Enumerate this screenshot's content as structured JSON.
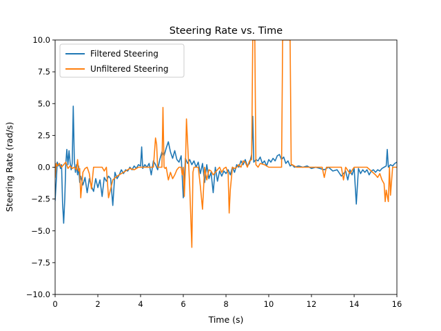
{
  "chart_data": {
    "type": "line",
    "title": "Steering Rate vs. Time",
    "xlabel": "Time (s)",
    "ylabel": "Steering Rate (rad/s)",
    "xlim": [
      0,
      16
    ],
    "ylim": [
      -10,
      10
    ],
    "xticks": [
      0,
      2,
      4,
      6,
      8,
      10,
      12,
      14,
      16
    ],
    "yticks": [
      -10.0,
      -7.5,
      -5.0,
      -2.5,
      0.0,
      2.5,
      5.0,
      7.5,
      10.0
    ],
    "xtick_labels": [
      "0",
      "2",
      "4",
      "6",
      "8",
      "10",
      "12",
      "14",
      "16"
    ],
    "ytick_labels": [
      "−10.0",
      "−7.5",
      "−5.0",
      "−2.5",
      "0.0",
      "2.5",
      "5.0",
      "7.5",
      "10.0"
    ],
    "grid": false,
    "legend_position": "top-left",
    "series": [
      {
        "name": "Filtered Steering",
        "color": "#1f77b4",
        "x": [
          0.0,
          0.05,
          0.1,
          0.15,
          0.2,
          0.25,
          0.3,
          0.35,
          0.4,
          0.45,
          0.5,
          0.55,
          0.6,
          0.65,
          0.7,
          0.75,
          0.8,
          0.85,
          0.9,
          0.95,
          1.0,
          1.05,
          1.1,
          1.15,
          1.2,
          1.3,
          1.4,
          1.5,
          1.6,
          1.7,
          1.8,
          1.9,
          2.0,
          2.1,
          2.2,
          2.3,
          2.4,
          2.5,
          2.6,
          2.7,
          2.8,
          2.9,
          3.0,
          3.1,
          3.2,
          3.3,
          3.4,
          3.5,
          3.6,
          3.7,
          3.8,
          3.9,
          4.0,
          4.05,
          4.1,
          4.2,
          4.3,
          4.4,
          4.5,
          4.6,
          4.7,
          4.8,
          4.9,
          5.0,
          5.1,
          5.2,
          5.3,
          5.4,
          5.5,
          5.6,
          5.7,
          5.8,
          5.9,
          6.0,
          6.1,
          6.2,
          6.3,
          6.4,
          6.5,
          6.6,
          6.7,
          6.8,
          6.9,
          7.0,
          7.1,
          7.2,
          7.3,
          7.4,
          7.5,
          7.6,
          7.7,
          7.8,
          7.9,
          8.0,
          8.1,
          8.2,
          8.3,
          8.4,
          8.5,
          8.6,
          8.7,
          8.8,
          8.9,
          9.0,
          9.1,
          9.2,
          9.25,
          9.3,
          9.4,
          9.5,
          9.6,
          9.7,
          9.8,
          9.9,
          10.0,
          10.1,
          10.2,
          10.3,
          10.4,
          10.5,
          10.6,
          10.7,
          10.8,
          10.9,
          11.0,
          11.1,
          11.2,
          11.4,
          11.6,
          11.8,
          12.0,
          12.2,
          12.4,
          12.6,
          12.8,
          13.0,
          13.2,
          13.4,
          13.6,
          13.7,
          13.8,
          13.9,
          14.0,
          14.1,
          14.2,
          14.3,
          14.4,
          14.5,
          14.6,
          14.7,
          14.8,
          14.9,
          15.0,
          15.1,
          15.2,
          15.3,
          15.4,
          15.5,
          15.55,
          15.6,
          15.7,
          15.8,
          15.9,
          16.0
        ],
        "y": [
          -2.6,
          -1.2,
          0.4,
          0.1,
          0.3,
          -0.1,
          0.2,
          -2.8,
          -4.4,
          -2.5,
          0.3,
          1.4,
          0.2,
          1.3,
          0.4,
          -0.2,
          0.3,
          4.8,
          0.5,
          -0.4,
          0.2,
          -0.6,
          0.1,
          -1.2,
          -0.7,
          -1.4,
          -0.8,
          -2.0,
          -0.9,
          -1.5,
          -1.9,
          -0.9,
          -1.6,
          -1.0,
          -2.3,
          -0.8,
          -1.1,
          -0.7,
          -0.9,
          -3.0,
          -0.4,
          -0.9,
          -0.6,
          -0.2,
          -0.5,
          -0.2,
          -0.3,
          0.0,
          -0.2,
          0.1,
          -0.1,
          0.2,
          0.1,
          1.6,
          -0.1,
          0.2,
          0.0,
          0.3,
          -0.6,
          0.5,
          0.2,
          -0.2,
          0.6,
          1.2,
          0.9,
          1.5,
          2.0,
          1.2,
          0.7,
          1.3,
          0.6,
          0.4,
          0.9,
          -2.4,
          0.7,
          0.3,
          0.6,
          0.2,
          0.5,
          0.0,
          0.4,
          -0.5,
          0.3,
          -1.2,
          0.2,
          -0.9,
          -0.4,
          -2.0,
          0.0,
          -1.1,
          -0.3,
          -0.7,
          -0.3,
          -0.5,
          -0.2,
          -0.6,
          0.0,
          -0.4,
          0.2,
          0.0,
          0.5,
          0.2,
          0.6,
          0.1,
          0.3,
          1.0,
          4.0,
          0.4,
          0.6,
          0.5,
          0.8,
          0.3,
          0.5,
          0.1,
          0.6,
          0.4,
          0.7,
          0.5,
          0.9,
          1.0,
          0.6,
          0.8,
          0.3,
          0.5,
          0.1,
          0.2,
          0.0,
          0.1,
          0.0,
          0.1,
          -0.1,
          0.0,
          -0.1,
          -0.2,
          0.0,
          -0.3,
          -0.2,
          -0.7,
          -0.3,
          -1.0,
          -0.2,
          -0.6,
          -0.1,
          -2.9,
          -0.1,
          -0.5,
          -0.2,
          -0.4,
          -0.2,
          -0.6,
          -0.3,
          -0.2,
          -0.4,
          -0.2,
          -0.3,
          -0.1,
          0.0,
          0.1,
          1.4,
          0.0,
          0.2,
          0.1,
          0.3,
          0.4
        ]
      },
      {
        "name": "Unfiltered Steering",
        "color": "#ff7f0e",
        "x": [
          0.0,
          0.05,
          0.1,
          0.2,
          0.3,
          0.4,
          0.5,
          0.6,
          0.7,
          0.8,
          0.9,
          1.0,
          1.05,
          1.1,
          1.15,
          1.2,
          1.3,
          1.4,
          1.5,
          1.6,
          1.7,
          1.8,
          1.9,
          2.0,
          2.1,
          2.2,
          2.3,
          2.4,
          2.5,
          2.7,
          2.9,
          3.1,
          3.3,
          3.5,
          3.7,
          3.9,
          4.1,
          4.3,
          4.5,
          4.6,
          4.7,
          4.75,
          4.8,
          4.9,
          5.0,
          5.05,
          5.1,
          5.15,
          5.2,
          5.3,
          5.4,
          5.5,
          5.6,
          5.7,
          5.8,
          5.9,
          5.95,
          6.0,
          6.05,
          6.1,
          6.15,
          6.2,
          6.3,
          6.4,
          6.45,
          6.5,
          6.6,
          6.7,
          6.8,
          6.9,
          7.0,
          7.1,
          7.2,
          7.3,
          7.4,
          7.5,
          7.6,
          7.7,
          7.8,
          7.9,
          8.0,
          8.1,
          8.15,
          8.2,
          8.3,
          8.4,
          8.5,
          8.6,
          8.7,
          8.8,
          8.9,
          9.0,
          9.1,
          9.2,
          9.25,
          9.3,
          9.35,
          9.4,
          9.5,
          9.6,
          9.8,
          10.0,
          10.2,
          10.4,
          10.6,
          10.65,
          10.7,
          10.8,
          10.9,
          11.0,
          11.05,
          11.1,
          11.3,
          11.5,
          11.7,
          11.9,
          12.1,
          12.3,
          12.5,
          12.6,
          12.7,
          12.8,
          13.0,
          13.2,
          13.4,
          13.5,
          13.6,
          13.8,
          14.0,
          14.2,
          14.4,
          14.6,
          14.8,
          15.0,
          15.1,
          15.2,
          15.3,
          15.4,
          15.45,
          15.5,
          15.6,
          15.65,
          15.7,
          15.8,
          15.9,
          16.0
        ],
        "y": [
          -0.8,
          0.3,
          0.1,
          0.3,
          0.0,
          0.2,
          0.4,
          -0.1,
          0.1,
          -0.1,
          0.0,
          -0.2,
          0.6,
          -0.3,
          -0.1,
          -2.4,
          -0.4,
          -0.1,
          0.0,
          -0.5,
          -1.7,
          0.0,
          0.0,
          0.0,
          0.0,
          0.0,
          -0.3,
          0.0,
          -2.4,
          -1.0,
          -0.7,
          -0.5,
          -0.3,
          -0.1,
          -0.2,
          0.0,
          0.0,
          0.0,
          0.0,
          0.0,
          2.3,
          1.8,
          0.0,
          0.0,
          0.0,
          4.7,
          0.0,
          -0.1,
          0.0,
          -1.0,
          -0.4,
          -0.9,
          -0.6,
          -0.2,
          0.0,
          0.0,
          -0.6,
          0.0,
          -2.3,
          0.0,
          3.8,
          2.0,
          -1.5,
          -6.3,
          -0.4,
          0.0,
          0.0,
          0.0,
          -1.5,
          -3.3,
          0.0,
          -1.0,
          -0.2,
          -0.3,
          -0.6,
          -0.4,
          -0.2,
          0.0,
          -0.4,
          -0.1,
          0.0,
          -0.5,
          -3.6,
          -1.8,
          0.0,
          -0.1,
          0.0,
          0.2,
          0.0,
          0.5,
          0.4,
          0.0,
          0.5,
          0.6,
          10.0,
          10.0,
          10.0,
          0.2,
          0.0,
          0.3,
          0.2,
          0.0,
          0.0,
          0.0,
          0.0,
          10.0,
          10.0,
          10.0,
          10.0,
          10.0,
          0.2,
          0.2,
          0.0,
          0.0,
          0.0,
          0.0,
          0.0,
          0.0,
          0.0,
          -0.8,
          0.0,
          0.0,
          0.0,
          0.0,
          0.0,
          -1.0,
          0.0,
          -0.5,
          0.0,
          0.0,
          0.0,
          0.0,
          -0.3,
          -0.6,
          -0.8,
          -0.5,
          -1.0,
          -1.3,
          -2.7,
          -1.8,
          -2.7,
          0.0,
          -2.2,
          0.0,
          0.0,
          0.0
        ]
      }
    ]
  }
}
